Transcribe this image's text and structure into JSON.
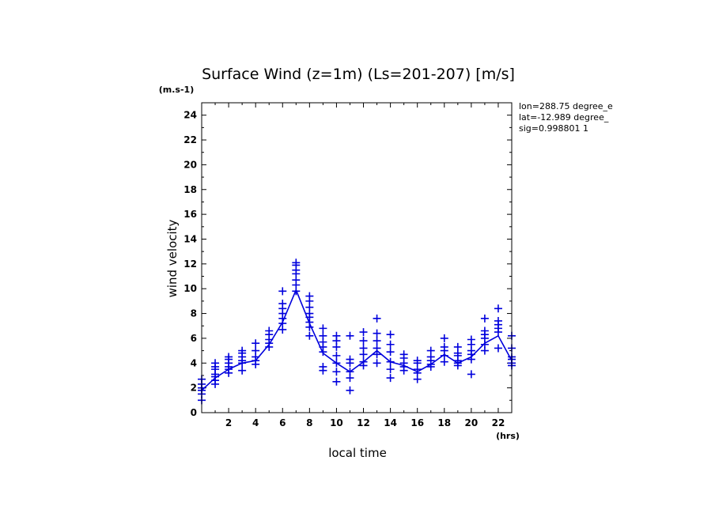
{
  "chart_data": {
    "type": "scatter",
    "title": "Surface Wind (z=1m) (Ls=201-207) [m/s]",
    "ylabel": "wind velocity",
    "yunit": "(m.s-1)",
    "xlabel": "local time",
    "xunit": "(hrs)",
    "xlim": [
      0,
      23
    ],
    "ylim": [
      0,
      25
    ],
    "x_ticks": [
      2,
      4,
      6,
      8,
      10,
      12,
      14,
      16,
      18,
      20,
      22
    ],
    "y_ticks": [
      0,
      2,
      4,
      6,
      8,
      10,
      12,
      14,
      16,
      18,
      20,
      22,
      24
    ],
    "info": [
      "lon=288.75 degree_e",
      "lat=-12.989 degree_",
      "sig=0.998801 1"
    ],
    "series": [
      {
        "style": "line",
        "color": "#0000dd",
        "x": [
          0,
          1,
          2,
          3,
          4,
          5,
          6,
          7,
          8,
          9,
          10,
          11,
          12,
          13,
          14,
          15,
          16,
          17,
          18,
          19,
          20,
          21,
          22,
          23
        ],
        "y": [
          1.8,
          2.8,
          3.5,
          4.0,
          4.2,
          5.5,
          7.3,
          9.9,
          7.2,
          4.8,
          4.0,
          3.3,
          4.1,
          5.0,
          4.1,
          3.8,
          3.3,
          3.9,
          4.7,
          4.0,
          4.5,
          5.6,
          6.2,
          4.2
        ]
      },
      {
        "style": "markers",
        "marker": "plus",
        "color": "#0000dd",
        "points": [
          [
            0,
            1.0
          ],
          [
            0,
            1.5
          ],
          [
            0,
            1.8
          ],
          [
            0,
            2.0
          ],
          [
            0,
            2.3
          ],
          [
            0,
            2.7
          ],
          [
            1,
            2.3
          ],
          [
            1,
            2.6
          ],
          [
            1,
            2.9
          ],
          [
            1,
            3.1
          ],
          [
            1,
            3.5
          ],
          [
            1,
            3.7
          ],
          [
            1,
            4.0
          ],
          [
            2,
            3.2
          ],
          [
            2,
            3.5
          ],
          [
            2,
            3.7
          ],
          [
            2,
            4.0
          ],
          [
            2,
            4.3
          ],
          [
            2,
            4.5
          ],
          [
            3,
            3.4
          ],
          [
            3,
            4.0
          ],
          [
            3,
            4.2
          ],
          [
            3,
            4.5
          ],
          [
            3,
            4.8
          ],
          [
            3,
            5.0
          ],
          [
            4,
            3.9
          ],
          [
            4,
            4.2
          ],
          [
            4,
            4.5
          ],
          [
            4,
            5.0
          ],
          [
            4,
            5.6
          ],
          [
            5,
            5.3
          ],
          [
            5,
            5.6
          ],
          [
            5,
            5.9
          ],
          [
            5,
            6.3
          ],
          [
            5,
            6.6
          ],
          [
            6,
            6.7
          ],
          [
            6,
            7.2
          ],
          [
            6,
            7.6
          ],
          [
            6,
            8.0
          ],
          [
            6,
            8.4
          ],
          [
            6,
            8.8
          ],
          [
            6,
            9.8
          ],
          [
            7,
            9.8
          ],
          [
            7,
            10.3
          ],
          [
            7,
            10.7
          ],
          [
            7,
            11.2
          ],
          [
            7,
            11.5
          ],
          [
            7,
            11.9
          ],
          [
            7,
            12.1
          ],
          [
            8,
            6.2
          ],
          [
            8,
            6.9
          ],
          [
            8,
            7.3
          ],
          [
            8,
            7.7
          ],
          [
            8,
            8.0
          ],
          [
            8,
            8.5
          ],
          [
            8,
            9.0
          ],
          [
            8,
            9.4
          ],
          [
            9,
            3.4
          ],
          [
            9,
            3.7
          ],
          [
            9,
            4.9
          ],
          [
            9,
            5.3
          ],
          [
            9,
            5.7
          ],
          [
            9,
            6.2
          ],
          [
            9,
            6.8
          ],
          [
            10,
            2.5
          ],
          [
            10,
            3.3
          ],
          [
            10,
            4.0
          ],
          [
            10,
            4.6
          ],
          [
            10,
            5.3
          ],
          [
            10,
            5.8
          ],
          [
            10,
            6.2
          ],
          [
            11,
            1.8
          ],
          [
            11,
            2.8
          ],
          [
            11,
            3.3
          ],
          [
            11,
            4.0
          ],
          [
            11,
            4.3
          ],
          [
            11,
            6.2
          ],
          [
            12,
            3.8
          ],
          [
            12,
            4.1
          ],
          [
            12,
            4.7
          ],
          [
            12,
            5.2
          ],
          [
            12,
            5.8
          ],
          [
            12,
            6.5
          ],
          [
            13,
            4.0
          ],
          [
            13,
            4.7
          ],
          [
            13,
            5.2
          ],
          [
            13,
            5.8
          ],
          [
            13,
            6.4
          ],
          [
            13,
            7.6
          ],
          [
            14,
            2.8
          ],
          [
            14,
            3.5
          ],
          [
            14,
            4.1
          ],
          [
            14,
            4.9
          ],
          [
            14,
            5.5
          ],
          [
            14,
            6.3
          ],
          [
            15,
            3.4
          ],
          [
            15,
            3.7
          ],
          [
            15,
            4.0
          ],
          [
            15,
            4.4
          ],
          [
            15,
            4.7
          ],
          [
            16,
            2.7
          ],
          [
            16,
            3.2
          ],
          [
            16,
            3.5
          ],
          [
            16,
            4.0
          ],
          [
            16,
            4.2
          ],
          [
            17,
            3.7
          ],
          [
            17,
            3.9
          ],
          [
            17,
            4.2
          ],
          [
            17,
            4.5
          ],
          [
            17,
            5.0
          ],
          [
            18,
            4.1
          ],
          [
            18,
            4.6
          ],
          [
            18,
            5.0
          ],
          [
            18,
            5.3
          ],
          [
            18,
            6.0
          ],
          [
            19,
            3.8
          ],
          [
            19,
            4.0
          ],
          [
            19,
            4.2
          ],
          [
            19,
            4.6
          ],
          [
            19,
            4.8
          ],
          [
            19,
            5.3
          ],
          [
            20,
            3.1
          ],
          [
            20,
            4.3
          ],
          [
            20,
            4.7
          ],
          [
            20,
            5.0
          ],
          [
            20,
            5.5
          ],
          [
            20,
            5.9
          ],
          [
            21,
            5.0
          ],
          [
            21,
            5.5
          ],
          [
            21,
            6.0
          ],
          [
            21,
            6.3
          ],
          [
            21,
            6.6
          ],
          [
            21,
            7.6
          ],
          [
            22,
            5.2
          ],
          [
            22,
            6.5
          ],
          [
            22,
            6.8
          ],
          [
            22,
            7.1
          ],
          [
            22,
            7.4
          ],
          [
            22,
            8.4
          ],
          [
            23,
            3.8
          ],
          [
            23,
            4.0
          ],
          [
            23,
            4.3
          ],
          [
            23,
            4.5
          ],
          [
            23,
            5.2
          ],
          [
            23,
            6.2
          ]
        ]
      }
    ]
  }
}
